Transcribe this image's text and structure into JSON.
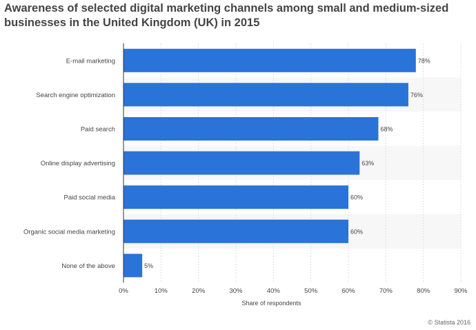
{
  "header": {
    "title_line1": "Awareness of selected digital marketing channels among small and medium-sized",
    "title_line2": "businesses in the United Kingdom (UK) in 2015"
  },
  "footer": {
    "copyright": "© Statista 2016"
  },
  "colors": {
    "bar": "#2a73d9",
    "band": "#f7f7f7",
    "grid": "#dddddd",
    "axis": "#333333",
    "text": "#444444"
  },
  "chart_data": {
    "type": "bar",
    "orientation": "horizontal",
    "categories": [
      "E-mail marketing",
      "Search engine optimization",
      "Paid search",
      "Online display advertising",
      "Paid social media",
      "Organic social media marketing",
      "None of the above"
    ],
    "values": [
      78,
      76,
      68,
      63,
      60,
      60,
      5
    ],
    "value_labels": [
      "78%",
      "76%",
      "68%",
      "63%",
      "60%",
      "60%",
      "5%"
    ],
    "xlabel": "Share of respondents",
    "ylabel": "",
    "xlim": [
      0,
      90
    ],
    "xticks": [
      0,
      10,
      20,
      30,
      40,
      50,
      60,
      70,
      80,
      90
    ],
    "xtick_labels": [
      "0%",
      "10%",
      "20%",
      "30%",
      "40%",
      "50%",
      "60%",
      "70%",
      "80%",
      "90%"
    ],
    "grid": true
  }
}
